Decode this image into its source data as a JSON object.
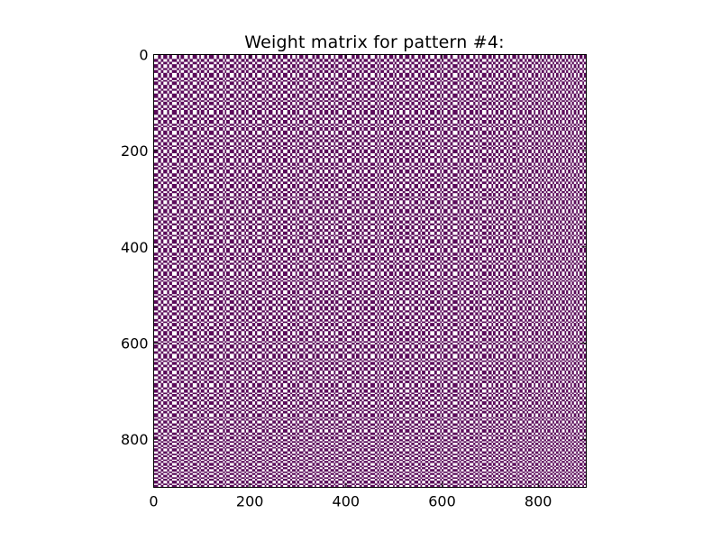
{
  "chart_data": {
    "type": "heatmap",
    "title": "Weight matrix for pattern #4:",
    "xlabel": "",
    "ylabel": "",
    "n": 900,
    "xlim": [
      0,
      900
    ],
    "ylim": [
      900,
      0
    ],
    "xticks": [
      0,
      200,
      400,
      600,
      800
    ],
    "yticks": [
      0,
      200,
      400,
      600,
      800
    ],
    "xtick_labels": [
      "0",
      "200",
      "400",
      "600",
      "800"
    ],
    "ytick_labels": [
      "0",
      "200",
      "400",
      "600",
      "800"
    ],
    "values_description_note_omitted": null,
    "value_levels": [
      -1,
      1
    ],
    "pattern_structure": "outer product w = p·pᵀ of a ±1 pattern vector (sign pattern approximated)",
    "colors": {
      "positive": "#ffffff",
      "negative": "#5a0a5a",
      "frame": "#000000"
    },
    "pattern_sign_runs": [
      [
        1,
        9
      ],
      [
        -1,
        6
      ],
      [
        1,
        5
      ],
      [
        -1,
        8
      ],
      [
        1,
        4
      ],
      [
        -1,
        6
      ],
      [
        1,
        10
      ],
      [
        -1,
        5
      ],
      [
        1,
        3
      ],
      [
        -1,
        7
      ],
      [
        1,
        8
      ],
      [
        -1,
        4
      ],
      [
        1,
        6
      ],
      [
        -1,
        9
      ],
      [
        1,
        5
      ],
      [
        -1,
        3
      ],
      [
        1,
        7
      ],
      [
        -1,
        6
      ],
      [
        1,
        4
      ],
      [
        -1,
        10
      ],
      [
        1,
        6
      ],
      [
        -1,
        5
      ],
      [
        1,
        8
      ],
      [
        -1,
        4
      ],
      [
        1,
        3
      ],
      [
        -1,
        7
      ],
      [
        1,
        9
      ],
      [
        -1,
        5
      ],
      [
        1,
        4
      ],
      [
        -1,
        6
      ],
      [
        1,
        7
      ],
      [
        -1,
        3
      ],
      [
        1,
        5
      ],
      [
        -1,
        8
      ],
      [
        1,
        6
      ],
      [
        -1,
        4
      ],
      [
        1,
        10
      ],
      [
        -1,
        6
      ],
      [
        1,
        3
      ],
      [
        -1,
        5
      ],
      [
        1,
        8
      ],
      [
        -1,
        7
      ],
      [
        1,
        4
      ],
      [
        -1,
        6
      ],
      [
        1,
        5
      ],
      [
        -1,
        9
      ],
      [
        1,
        6
      ],
      [
        -1,
        4
      ],
      [
        1,
        7
      ],
      [
        -1,
        3
      ],
      [
        1,
        5
      ],
      [
        -1,
        8
      ],
      [
        1,
        4
      ],
      [
        -1,
        6
      ],
      [
        1,
        9
      ],
      [
        -1,
        5
      ],
      [
        1,
        3
      ],
      [
        -1,
        7
      ],
      [
        1,
        6
      ],
      [
        -1,
        4
      ],
      [
        1,
        8
      ],
      [
        -1,
        5
      ],
      [
        1,
        7
      ],
      [
        -1,
        3
      ],
      [
        1,
        6
      ],
      [
        -1,
        9
      ],
      [
        1,
        4
      ],
      [
        -1,
        5
      ],
      [
        1,
        10
      ],
      [
        -1,
        6
      ],
      [
        1,
        3
      ],
      [
        -1,
        7
      ],
      [
        1,
        5
      ],
      [
        -1,
        4
      ],
      [
        1,
        8
      ],
      [
        -1,
        6
      ],
      [
        1,
        9
      ],
      [
        -1,
        5
      ],
      [
        1,
        4
      ],
      [
        -1,
        3
      ],
      [
        1,
        7
      ],
      [
        -1,
        6
      ],
      [
        1,
        5
      ],
      [
        -1,
        8
      ],
      [
        1,
        3
      ],
      [
        -1,
        4
      ],
      [
        1,
        6
      ],
      [
        -1,
        7
      ],
      [
        1,
        5
      ],
      [
        -1,
        9
      ],
      [
        1,
        4
      ],
      [
        -1,
        6
      ],
      [
        1,
        8
      ],
      [
        -1,
        5
      ],
      [
        1,
        3
      ],
      [
        -1,
        7
      ],
      [
        1,
        6
      ],
      [
        -1,
        4
      ],
      [
        1,
        9
      ],
      [
        -1,
        5
      ],
      [
        1,
        7
      ],
      [
        -1,
        3
      ],
      [
        1,
        4
      ],
      [
        -1,
        8
      ],
      [
        1,
        6
      ],
      [
        -1,
        5
      ],
      [
        1,
        10
      ],
      [
        -1,
        4
      ],
      [
        1,
        3
      ],
      [
        -1,
        6
      ],
      [
        1,
        5
      ],
      [
        -1,
        7
      ],
      [
        1,
        8
      ],
      [
        -1,
        4
      ],
      [
        1,
        6
      ],
      [
        -1,
        3
      ],
      [
        1,
        5
      ],
      [
        -1,
        9
      ],
      [
        1,
        4
      ],
      [
        -1,
        7
      ],
      [
        1,
        3
      ],
      [
        -1,
        5
      ],
      [
        1,
        6
      ],
      [
        -1,
        4
      ],
      [
        1,
        7
      ],
      [
        -1,
        6
      ],
      [
        1,
        4
      ],
      [
        -1,
        3
      ],
      [
        1,
        5
      ],
      [
        -1,
        8
      ],
      [
        1,
        3
      ],
      [
        -1,
        4
      ],
      [
        1,
        6
      ],
      [
        -1,
        5
      ],
      [
        1,
        4
      ],
      [
        -1,
        3
      ],
      [
        1,
        7
      ],
      [
        -1,
        5
      ],
      [
        1,
        3
      ],
      [
        -1,
        6
      ],
      [
        1,
        4
      ],
      [
        -1,
        3
      ],
      [
        1,
        5
      ],
      [
        -1,
        4
      ],
      [
        1,
        3
      ],
      [
        -1,
        6
      ],
      [
        1,
        5
      ],
      [
        -1,
        3
      ],
      [
        1,
        4
      ],
      [
        -1,
        5
      ],
      [
        1,
        3
      ],
      [
        -1,
        4
      ],
      [
        1,
        6
      ],
      [
        -1,
        3
      ],
      [
        1,
        4
      ],
      [
        -1,
        5
      ],
      [
        1,
        3
      ],
      [
        -1,
        4
      ],
      [
        1,
        5
      ],
      [
        -1,
        3
      ],
      [
        1,
        4
      ],
      [
        -1,
        6
      ],
      [
        1,
        3
      ],
      [
        -1,
        4
      ],
      [
        1,
        5
      ],
      [
        -1,
        3
      ],
      [
        1,
        4
      ],
      [
        -1,
        5
      ],
      [
        1,
        3
      ],
      [
        -1,
        4
      ],
      [
        1,
        3
      ],
      [
        -1,
        5
      ],
      [
        1,
        4
      ],
      [
        -1,
        3
      ],
      [
        1,
        6
      ],
      [
        -1,
        4
      ],
      [
        1,
        3
      ],
      [
        -1,
        5
      ],
      [
        1,
        4
      ],
      [
        -1,
        3
      ],
      [
        1,
        5
      ],
      [
        -1,
        4
      ],
      [
        1,
        3
      ],
      [
        -1,
        6
      ],
      [
        1,
        4
      ],
      [
        -1,
        3
      ],
      [
        1,
        5
      ],
      [
        -1,
        4
      ],
      [
        1,
        3
      ],
      [
        -1,
        5
      ],
      [
        1,
        4
      ],
      [
        -1,
        3
      ],
      [
        1,
        6
      ],
      [
        -1,
        5
      ],
      [
        1,
        3
      ],
      [
        -1,
        4
      ],
      [
        1,
        5
      ],
      [
        -1,
        3
      ],
      [
        1,
        4
      ],
      [
        -1,
        6
      ]
    ]
  }
}
